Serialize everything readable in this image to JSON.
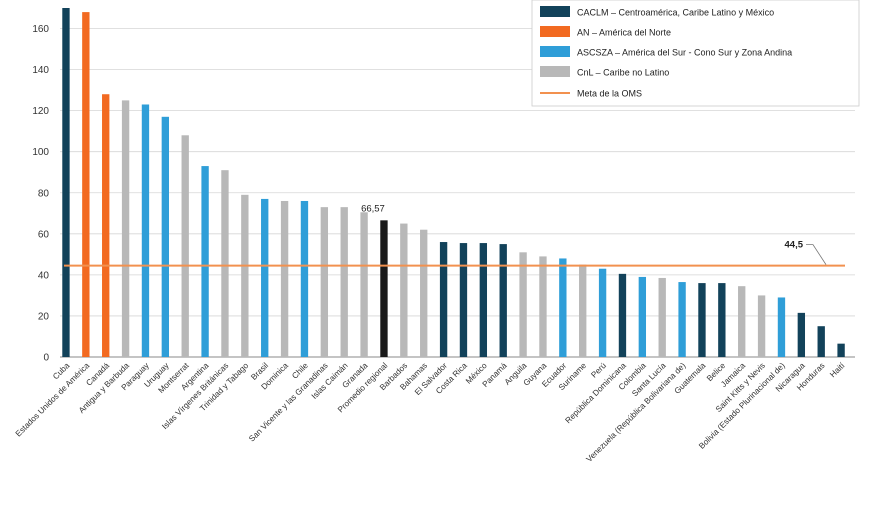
{
  "chart_data": {
    "type": "bar",
    "title": "",
    "xlabel": "",
    "ylabel": "",
    "ylim": [
      0,
      170
    ],
    "yticks": [
      0,
      20,
      40,
      60,
      80,
      100,
      120,
      140,
      160
    ],
    "grid": "horizontal",
    "legend_position": "top-right",
    "groups": [
      {
        "key": "CACLM",
        "label": "CACLM – Centroamérica, Caribe Latino y México",
        "color": "#12425a"
      },
      {
        "key": "AN",
        "label": "AN – América del Norte",
        "color": "#f26a21"
      },
      {
        "key": "ASCSZA",
        "label": "ASCSZA – América del Sur - Cono Sur y Zona Andina",
        "color": "#2f9ed8"
      },
      {
        "key": "CnL",
        "label": "CnL – Caribe no Latino",
        "color": "#b8b8b8"
      }
    ],
    "highlight_color": "#1a1a1a",
    "reference_line": {
      "label": "Meta de la OMS",
      "value": 44.5,
      "value_label": "44,5",
      "color": "#f2914f"
    },
    "highlight_label": "66,57",
    "bars": [
      {
        "category": "Cuba",
        "value": 170,
        "group": "CACLM"
      },
      {
        "category": "Estados Unidos de América",
        "value": 168,
        "group": "AN"
      },
      {
        "category": "Canadá",
        "value": 128,
        "group": "AN"
      },
      {
        "category": "Antigua y Barbuda",
        "value": 125,
        "group": "CnL"
      },
      {
        "category": "Paraguay",
        "value": 123,
        "group": "ASCSZA"
      },
      {
        "category": "Uruguay",
        "value": 117,
        "group": "ASCSZA"
      },
      {
        "category": "Montserrat",
        "value": 108,
        "group": "CnL"
      },
      {
        "category": "Argentina",
        "value": 93,
        "group": "ASCSZA"
      },
      {
        "category": "Islas Vírgenes Británicas",
        "value": 91,
        "group": "CnL"
      },
      {
        "category": "Trinidad y Tabago",
        "value": 79,
        "group": "CnL"
      },
      {
        "category": "Brasil",
        "value": 77,
        "group": "ASCSZA"
      },
      {
        "category": "Dominica",
        "value": 76,
        "group": "CnL"
      },
      {
        "category": "Chile",
        "value": 76,
        "group": "ASCSZA"
      },
      {
        "category": "San Vicente y las Granadinas",
        "value": 73,
        "group": "CnL"
      },
      {
        "category": "Islas Caimán",
        "value": 73,
        "group": "CnL"
      },
      {
        "category": "Granada",
        "value": 70.5,
        "group": "CnL"
      },
      {
        "category": "Promedio regional",
        "value": 66.57,
        "group": "highlight"
      },
      {
        "category": "Barbados",
        "value": 65,
        "group": "CnL"
      },
      {
        "category": "Bahamas",
        "value": 62,
        "group": "CnL"
      },
      {
        "category": "El Salvador",
        "value": 56,
        "group": "CACLM"
      },
      {
        "category": "Costa Rica",
        "value": 55.5,
        "group": "CACLM"
      },
      {
        "category": "México",
        "value": 55.5,
        "group": "CACLM"
      },
      {
        "category": "Panamá",
        "value": 55,
        "group": "CACLM"
      },
      {
        "category": "Anguila",
        "value": 51,
        "group": "CnL"
      },
      {
        "category": "Guyana",
        "value": 49,
        "group": "CnL"
      },
      {
        "category": "Ecuador",
        "value": 48,
        "group": "ASCSZA"
      },
      {
        "category": "Suriname",
        "value": 45,
        "group": "CnL"
      },
      {
        "category": "Perú",
        "value": 43,
        "group": "ASCSZA"
      },
      {
        "category": "República Dominicana",
        "value": 40.5,
        "group": "CACLM"
      },
      {
        "category": "Colombia",
        "value": 39,
        "group": "ASCSZA"
      },
      {
        "category": "Santa Lucía",
        "value": 38.5,
        "group": "CnL"
      },
      {
        "category": "Venezuela (República Bolivariana de)",
        "value": 36.5,
        "group": "ASCSZA"
      },
      {
        "category": "Guatemala",
        "value": 36,
        "group": "CACLM"
      },
      {
        "category": "Belice",
        "value": 36,
        "group": "CACLM"
      },
      {
        "category": "Jamaica",
        "value": 34.5,
        "group": "CnL"
      },
      {
        "category": "Saint Kitts y Nevis",
        "value": 30,
        "group": "CnL"
      },
      {
        "category": "Bolivia (Estado Plurinacional de)",
        "value": 29,
        "group": "ASCSZA"
      },
      {
        "category": "Nicaragua",
        "value": 21.5,
        "group": "CACLM"
      },
      {
        "category": "Honduras",
        "value": 15,
        "group": "CACLM"
      },
      {
        "category": "Haití",
        "value": 6.5,
        "group": "CACLM"
      }
    ]
  }
}
